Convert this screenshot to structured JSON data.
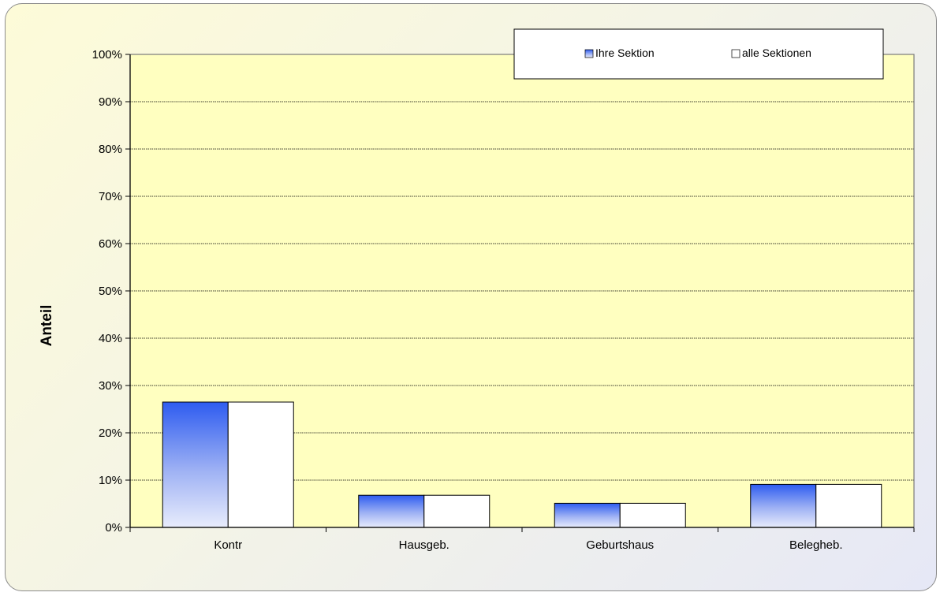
{
  "chart_data": {
    "type": "bar",
    "title": "",
    "xlabel": "",
    "ylabel": "Anteil",
    "categories": [
      "Kontr",
      "Hausgeb.",
      "Geburtshaus",
      "Belegheb."
    ],
    "series": [
      {
        "name": "Ihre Sektion",
        "values": [
          26.5,
          6.8,
          5.1,
          9.1
        ],
        "color": "#2e5cf0"
      },
      {
        "name": "alle Sektionen",
        "values": [
          26.5,
          6.8,
          5.1,
          9.1
        ],
        "color": "#ffffff"
      }
    ],
    "ylim": [
      0,
      100
    ],
    "yticks": [
      "0%",
      "10%",
      "20%",
      "30%",
      "40%",
      "50%",
      "60%",
      "70%",
      "80%",
      "90%",
      "100%"
    ],
    "grid": true,
    "legend_position": "top-right",
    "plot_background": "#ffffc0"
  }
}
